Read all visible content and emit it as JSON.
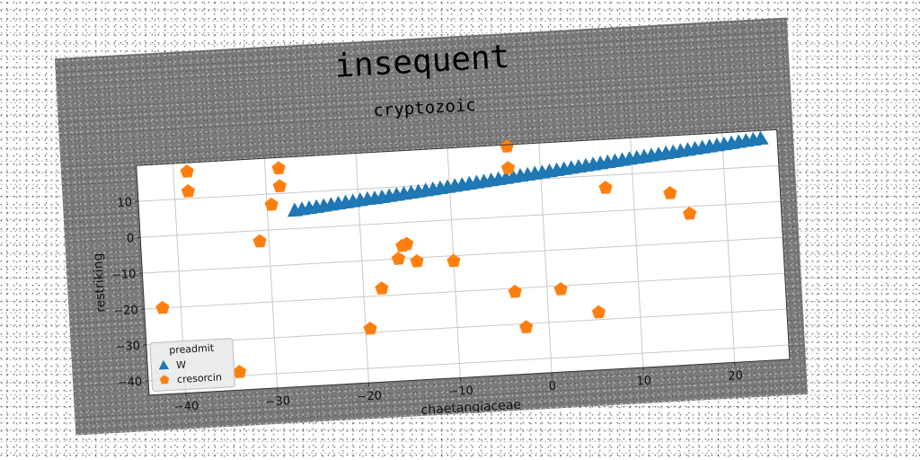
{
  "chart_data": {
    "type": "scatter",
    "title": "insequent",
    "subtitle": "cryptozoic",
    "xlabel": "chaetangiaceae",
    "ylabel": "restriking",
    "xlim": [
      -44,
      26
    ],
    "ylim": [
      -44,
      20
    ],
    "xticks": [
      -40,
      -30,
      -20,
      -10,
      0,
      10,
      20
    ],
    "yticks": [
      -40,
      -30,
      -20,
      -10,
      0,
      10
    ],
    "grid": true,
    "legend": {
      "title": "preadmit",
      "placement": "lower-left"
    },
    "series": [
      {
        "name": "W",
        "marker": "triangle",
        "color": "#1f77b4",
        "x": [
          -27.0,
          -26.2,
          -25.4,
          -24.6,
          -23.8,
          -23.0,
          -22.2,
          -21.4,
          -20.6,
          -19.8,
          -19.0,
          -18.2,
          -17.4,
          -16.6,
          -15.8,
          -15.0,
          -14.2,
          -13.4,
          -12.6,
          -11.8,
          -11.0,
          -10.2,
          -9.4,
          -8.6,
          -7.8,
          -7.0,
          -6.2,
          -5.4,
          -4.6,
          -3.8,
          -3.0,
          -2.2,
          -1.4,
          -0.6,
          0.2,
          1.0,
          1.8,
          2.6,
          3.4,
          4.2,
          5.0,
          5.8,
          6.6,
          7.4,
          8.2,
          9.0,
          9.8,
          10.6,
          11.4,
          12.2,
          13.0,
          13.8,
          14.6,
          15.4,
          16.2,
          17.0,
          17.8,
          18.6,
          19.4,
          20.2,
          21.0,
          21.8,
          22.6,
          23.4,
          24.2
        ],
        "y": [
          5.0,
          5.2,
          5.4,
          5.6,
          5.8,
          6.0,
          6.2,
          6.4,
          6.6,
          6.8,
          7.0,
          7.1,
          7.3,
          7.5,
          7.7,
          7.9,
          8.1,
          8.3,
          8.5,
          8.7,
          8.9,
          9.1,
          9.3,
          9.5,
          9.7,
          9.9,
          10.1,
          10.3,
          10.5,
          10.7,
          10.9,
          11.1,
          11.3,
          11.5,
          11.7,
          11.9,
          12.1,
          12.3,
          12.5,
          12.7,
          12.9,
          13.1,
          13.3,
          13.5,
          13.7,
          13.9,
          14.1,
          14.3,
          14.5,
          14.7,
          14.9,
          15.1,
          15.3,
          15.5,
          15.7,
          15.9,
          16.1,
          16.3,
          16.5,
          16.7,
          16.9,
          17.1,
          17.3,
          17.5,
          17.7
        ]
      },
      {
        "name": "cresorcin",
        "marker": "pentagon",
        "color": "#ff7f0e",
        "x": [
          -38.5,
          -38.5,
          -28.5,
          -28.5,
          -29.5,
          -31,
          -42,
          -34,
          -19.5,
          -18,
          -16,
          -15.5,
          -15,
          -14,
          -10,
          -3.5,
          -3.5,
          -3.5,
          -2.5,
          1.5,
          5.5,
          7,
          14,
          16
        ],
        "y": [
          17.5,
          12,
          17,
          12,
          7,
          -3,
          -20,
          -39,
          -29,
          -18,
          -10,
          -6.5,
          -6,
          -11,
          -11.5,
          19.5,
          13.5,
          -21,
          -31,
          -21,
          -28,
          6.5,
          4,
          -2
        ]
      }
    ]
  }
}
